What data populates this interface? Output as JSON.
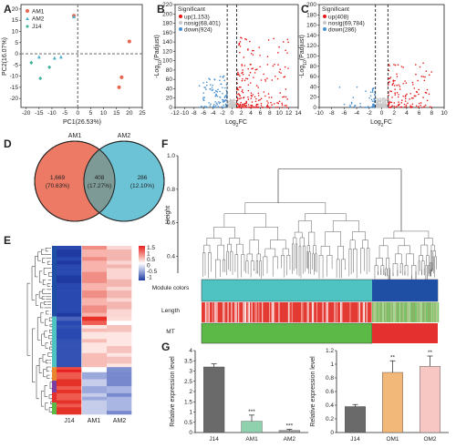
{
  "panel_labels": [
    "A",
    "B",
    "C",
    "D",
    "E",
    "F",
    "G"
  ],
  "colors": {
    "am1": "#e8664f",
    "am2": "#4fb0c6",
    "j14": "#44b39a",
    "up": "#e41a1c",
    "nosig": "#c8c8c8",
    "down": "#4a90d0",
    "venn_am1": "#ec7a65",
    "venn_am2": "#6cc3d6",
    "venn_overlap": "#7e9a96",
    "turquoise": "#4ec3c2",
    "blue_module": "#1f4ea5",
    "mt_green": "#5cb847",
    "mt_red": "#e53030",
    "g_j14": "#6a6a6a",
    "g_am1": "#8fd1ad",
    "g_am2": "#9a9a9a",
    "g_om1": "#f2b879",
    "g_om2": "#f6c7c3"
  },
  "chart_data": [
    {
      "type": "scatter",
      "panel": "A",
      "xlabel": "PC1(26.53%)",
      "ylabel": "PC2(16.07%)",
      "xlim": [
        -22,
        25
      ],
      "ylim": [
        -24,
        22
      ],
      "xticks": [
        -20,
        -15,
        -10,
        -5,
        0,
        5,
        10,
        15,
        20,
        25
      ],
      "yticks": [
        -20,
        -15,
        -10,
        -5,
        0,
        5,
        10,
        15,
        20
      ],
      "series": [
        {
          "name": "AM1",
          "color": "#e8664f",
          "marker": "circle",
          "points": [
            [
              -1.5,
              17
            ],
            [
              20,
              5.5
            ],
            [
              17,
              -10.5
            ],
            [
              16,
              -15
            ]
          ]
        },
        {
          "name": "AM2",
          "color": "#4fb0c6",
          "marker": "triangle",
          "points": [
            [
              -1.5,
              16.5
            ],
            [
              -15,
              -1.5
            ],
            [
              -9,
              -2
            ],
            [
              -6.5,
              -1.5
            ]
          ]
        },
        {
          "name": "J14",
          "color": "#44b39a",
          "marker": "diamond",
          "points": [
            [
              -18,
              -4
            ],
            [
              -14.5,
              -11
            ],
            [
              -11,
              -6
            ]
          ]
        }
      ],
      "vline": 0,
      "hline": 0
    },
    {
      "type": "scatter",
      "panel": "B",
      "legend_title": "Significant",
      "legend": [
        "up(1,153)",
        "nosig(68,401)",
        "down(924)"
      ],
      "xlabel_base": "Log",
      "xlabel_sub": "2",
      "xlabel_tail": "FC",
      "ylabel_pre": "-Log",
      "ylabel_sub": "10",
      "ylabel_tail": "(Padjust)",
      "xlim": [
        -12,
        14
      ],
      "ylim": [
        0,
        220
      ],
      "xticks": [
        -12,
        -10,
        -8,
        -6,
        -4,
        -2,
        0,
        2,
        4,
        6,
        8,
        10,
        12,
        14
      ],
      "yticks": [
        0,
        20,
        40,
        60,
        80,
        100,
        120,
        140,
        160,
        180,
        200,
        220
      ],
      "vlines": [
        -1,
        1
      ],
      "counts": {
        "up": 1153,
        "nosig": 68401,
        "down": 924
      }
    },
    {
      "type": "scatter",
      "panel": "C",
      "legend_title": "Significant",
      "legend": [
        "up(408)",
        "nosig(69,784)",
        "down(286)"
      ],
      "xlabel_base": "Log",
      "xlabel_sub": "2",
      "xlabel_tail": "FC",
      "ylabel_pre": "-Log",
      "ylabel_sub": "10",
      "ylabel_tail": "(Padjust)",
      "xlim": [
        -10,
        10
      ],
      "ylim": [
        0,
        200
      ],
      "xticks": [
        -10,
        -8,
        -6,
        -4,
        -2,
        0,
        2,
        4,
        6,
        8,
        10
      ],
      "yticks": [
        0,
        20,
        40,
        60,
        80,
        100,
        120,
        140,
        160,
        180,
        200
      ],
      "vlines": [
        -1,
        1
      ],
      "counts": {
        "up": 408,
        "nosig": 69784,
        "down": 286
      }
    },
    {
      "type": "venn",
      "panel": "D",
      "sets": [
        "AM1",
        "AM2"
      ],
      "left": {
        "count": "1,669",
        "pct": "(70.63%)"
      },
      "overlap": {
        "count": "408",
        "pct": "(17.27%)"
      },
      "right": {
        "count": "286",
        "pct": "(12.10%)"
      }
    },
    {
      "type": "heatmap",
      "panel": "E",
      "columns": [
        "J14",
        "AM1",
        "AM2"
      ],
      "color_scale": [
        "1.5",
        "1",
        "0.5",
        "0",
        "-0.5",
        "-1"
      ]
    },
    {
      "type": "dendrogram",
      "panel": "F",
      "ylabel": "Height",
      "yticks": [
        "0.4",
        "0.6",
        "0.8",
        "1.0"
      ],
      "rows": [
        "Module colors",
        "Length",
        "MT"
      ]
    },
    {
      "type": "bar",
      "panel": "G-left",
      "categories": [
        "J14",
        "AM1",
        "AM2"
      ],
      "values": [
        3.2,
        0.55,
        0.1
      ],
      "errors": [
        0.15,
        0.3,
        0.05
      ],
      "sig": [
        "",
        "***",
        "***"
      ],
      "ylabel": "Relative expression level",
      "ylim": [
        0,
        4
      ],
      "yticks": [
        0,
        0.5,
        1,
        1.5,
        2,
        2.5,
        3,
        3.5,
        4
      ]
    },
    {
      "type": "bar",
      "panel": "G-right",
      "categories": [
        "J14",
        "OM1",
        "OM2"
      ],
      "values": [
        0.38,
        0.88,
        0.97
      ],
      "errors": [
        0.03,
        0.17,
        0.15
      ],
      "sig": [
        "",
        "**",
        "**"
      ],
      "ylabel": "Relative expression level",
      "ylim": [
        0,
        1.2
      ],
      "yticks": [
        0,
        0.2,
        0.4,
        0.6,
        0.8,
        1,
        1.2
      ]
    }
  ]
}
